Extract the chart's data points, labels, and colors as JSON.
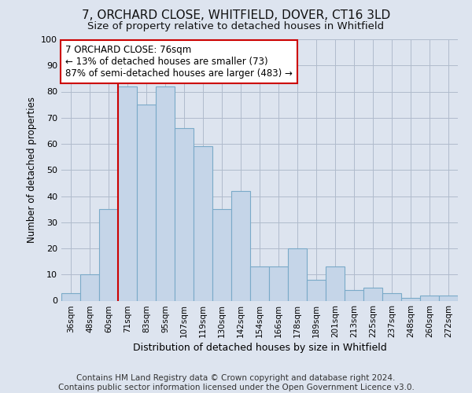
{
  "title": "7, ORCHARD CLOSE, WHITFIELD, DOVER, CT16 3LD",
  "subtitle": "Size of property relative to detached houses in Whitfield",
  "xlabel": "Distribution of detached houses by size in Whitfield",
  "ylabel": "Number of detached properties",
  "categories": [
    "36sqm",
    "48sqm",
    "60sqm",
    "71sqm",
    "83sqm",
    "95sqm",
    "107sqm",
    "119sqm",
    "130sqm",
    "142sqm",
    "154sqm",
    "166sqm",
    "178sqm",
    "189sqm",
    "201sqm",
    "213sqm",
    "225sqm",
    "237sqm",
    "248sqm",
    "260sqm",
    "272sqm"
  ],
  "values": [
    3,
    10,
    35,
    82,
    75,
    82,
    66,
    59,
    35,
    42,
    13,
    13,
    20,
    8,
    13,
    4,
    5,
    3,
    1,
    2,
    2
  ],
  "bar_color": "#c5d5e8",
  "bar_edge_color": "#7aaac8",
  "vline_x_index": 3,
  "vline_color": "#cc0000",
  "annotation_text": "7 ORCHARD CLOSE: 76sqm\n← 13% of detached houses are smaller (73)\n87% of semi-detached houses are larger (483) →",
  "annotation_box_color": "#ffffff",
  "annotation_box_edge": "#cc0000",
  "ylim": [
    0,
    100
  ],
  "yticks": [
    0,
    10,
    20,
    30,
    40,
    50,
    60,
    70,
    80,
    90,
    100
  ],
  "bg_color": "#dde4ef",
  "plot_bg_color": "#dde4ef",
  "footer": "Contains HM Land Registry data © Crown copyright and database right 2024.\nContains public sector information licensed under the Open Government Licence v3.0.",
  "title_fontsize": 11,
  "subtitle_fontsize": 9.5,
  "annotation_fontsize": 8.5,
  "footer_fontsize": 7.5,
  "xlabel_fontsize": 9,
  "ylabel_fontsize": 8.5
}
